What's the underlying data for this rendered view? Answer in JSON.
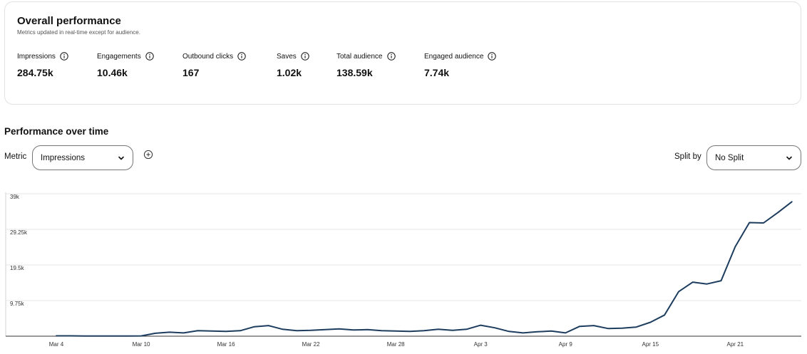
{
  "overview": {
    "title": "Overall performance",
    "subtitle": "Metrics updated in real-time except for audience.",
    "metrics": [
      {
        "label": "Impressions",
        "value": "284.75k"
      },
      {
        "label": "Engagements",
        "value": "10.46k"
      },
      {
        "label": "Outbound clicks",
        "value": "167"
      },
      {
        "label": "Saves",
        "value": "1.02k"
      },
      {
        "label": "Total audience",
        "value": "138.59k"
      },
      {
        "label": "Engaged audience",
        "value": "7.74k"
      }
    ]
  },
  "performance": {
    "title": "Performance over time",
    "metric_label": "Metric",
    "metric_value": "Impressions",
    "split_label": "Split by",
    "split_value": "No Split"
  },
  "icons": {
    "info": "info-circle-icon",
    "dropdown": "chevron-down-icon",
    "add": "add-circle-icon"
  },
  "colors": {
    "line": "#1d3d5f",
    "grid": "#e6e6e6",
    "border": "#767676"
  },
  "chart_data": {
    "type": "line",
    "ylim": [
      0,
      39000
    ],
    "y_ticks": [
      9750,
      19500,
      29250,
      39000
    ],
    "y_tick_labels": [
      "9.75k",
      "19.5k",
      "29.25k",
      "39k"
    ],
    "x_tick_labels": [
      "Mar 4",
      "Mar 10",
      "Mar 16",
      "Mar 22",
      "Mar 28",
      "Apr 3",
      "Apr 9",
      "Apr 15",
      "Apr 21"
    ],
    "x_tick_index": [
      0,
      6,
      12,
      18,
      24,
      30,
      36,
      42,
      48
    ],
    "grid": true,
    "series": [
      {
        "name": "",
        "values": [
          100,
          100,
          50,
          50,
          50,
          50,
          80,
          800,
          1100,
          900,
          1500,
          1400,
          1300,
          1500,
          2600,
          2900,
          1900,
          1500,
          1600,
          1800,
          2000,
          1700,
          1800,
          1500,
          1400,
          1300,
          1500,
          1900,
          1600,
          1900,
          3000,
          2300,
          1300,
          900,
          1200,
          1400,
          900,
          2700,
          2900,
          2100,
          2200,
          2500,
          3800,
          5800,
          12200,
          14800,
          14300,
          15200,
          24500,
          31100,
          31000,
          33800,
          36800
        ]
      }
    ]
  }
}
